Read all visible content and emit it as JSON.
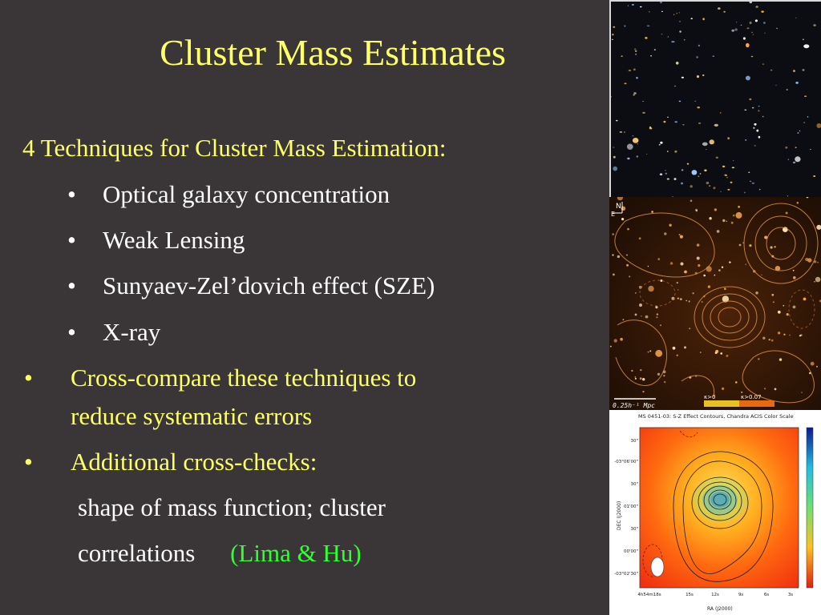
{
  "slide": {
    "title": "Cluster Mass Estimates",
    "heading": "4 Techniques for Cluster Mass Estimation:",
    "techniques": [
      "Optical galaxy concentration",
      "Weak Lensing",
      "Sunyaev-Zel’dovich effect (SZE)",
      "X-ray"
    ],
    "bullets": [
      {
        "line1": "Cross-compare these techniques to",
        "line2": "reduce systematic errors"
      },
      {
        "line1": "Additional cross-checks:"
      }
    ],
    "crosscheck_line1": "shape of mass function; cluster",
    "crosscheck_line2": "correlations",
    "reference": "(Lima & Hu)",
    "bullet_glyph": "•",
    "colors": {
      "background": "#3a3637",
      "title": "#ffff66",
      "body": "#ffffff",
      "reference": "#33ff33"
    }
  },
  "images": {
    "lensing_scale_label": "0.25h⁻¹ Mpc",
    "lensing_key_left": "κ>0",
    "lensing_key_right": "κ>0.07",
    "sz_title": "MS 0451-03: S-Z Effect Contours, Chandra ACIS Color Scale",
    "sz_ylabel": "DEC (J2000)",
    "sz_xlabel": "RA (J2000)",
    "sz_yticks": [
      "30\"",
      "-03°06'00\"",
      "30\"",
      "01'00\"",
      "30\"",
      "00'00\"",
      "-03°02'30\""
    ],
    "sz_xticks": [
      "4h54m18s",
      "15s",
      "12s",
      "9s",
      "6s",
      "3s"
    ]
  }
}
